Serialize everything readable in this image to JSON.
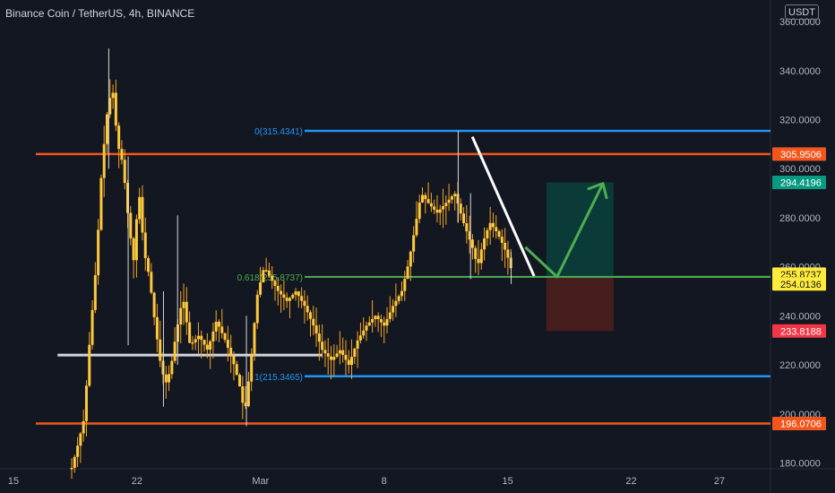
{
  "header": {
    "title": "Binance Coin / TetherUS, 4h, BINANCE",
    "currency": "USDT"
  },
  "chart_data": {
    "type": "candlestick",
    "symbol": "BNBUSDT",
    "interval": "4h",
    "ylim": [
      175,
      365
    ],
    "y_ticks": [
      {
        "value": 180,
        "label": "180.0000"
      },
      {
        "value": 200,
        "label": "200.0000"
      },
      {
        "value": 220,
        "label": "220.0000"
      },
      {
        "value": 240,
        "label": "240.0000"
      },
      {
        "value": 260,
        "label": "260.0000"
      },
      {
        "value": 280,
        "label": "280.0000"
      },
      {
        "value": 300,
        "label": "300.0000"
      },
      {
        "value": 320,
        "label": "320.0000"
      },
      {
        "value": 340,
        "label": "340.0000"
      },
      {
        "value": 360,
        "label": "360.0000"
      }
    ],
    "x_ticks": [
      {
        "day": 15,
        "label": "15"
      },
      {
        "day": 22,
        "label": "22"
      },
      {
        "day": 29,
        "label": "Mar"
      },
      {
        "day": 36,
        "label": "8"
      },
      {
        "day": 43,
        "label": "15"
      },
      {
        "day": 50,
        "label": "22"
      },
      {
        "day": 55,
        "label": "27"
      }
    ],
    "close_path": [
      [
        18.3,
        178
      ],
      [
        18.6,
        186
      ],
      [
        19.0,
        198
      ],
      [
        19.3,
        228
      ],
      [
        19.7,
        262
      ],
      [
        20.0,
        300
      ],
      [
        20.3,
        322
      ],
      [
        20.6,
        334
      ],
      [
        20.9,
        310
      ],
      [
        21.2,
        302
      ],
      [
        21.5,
        280
      ],
      [
        21.8,
        262
      ],
      [
        22.1,
        292
      ],
      [
        22.4,
        266
      ],
      [
        22.7,
        256
      ],
      [
        23.0,
        238
      ],
      [
        23.3,
        222
      ],
      [
        23.6,
        212
      ],
      [
        23.9,
        218
      ],
      [
        24.2,
        232
      ],
      [
        24.6,
        248
      ],
      [
        25.0,
        228
      ],
      [
        25.5,
        232
      ],
      [
        26.0,
        226
      ],
      [
        26.5,
        238
      ],
      [
        27.0,
        230
      ],
      [
        27.5,
        220
      ],
      [
        27.8,
        212
      ],
      [
        28.1,
        200
      ],
      [
        28.4,
        218
      ],
      [
        28.8,
        248
      ],
      [
        29.2,
        260
      ],
      [
        29.6,
        255
      ],
      [
        30.0,
        250
      ],
      [
        30.5,
        246
      ],
      [
        31.0,
        250
      ],
      [
        31.5,
        244
      ],
      [
        32.0,
        236
      ],
      [
        32.5,
        226
      ],
      [
        33.0,
        222
      ],
      [
        33.5,
        226
      ],
      [
        34.0,
        220
      ],
      [
        34.5,
        230
      ],
      [
        35.0,
        236
      ],
      [
        35.5,
        240
      ],
      [
        36.0,
        236
      ],
      [
        36.5,
        244
      ],
      [
        37.0,
        250
      ],
      [
        37.4,
        262
      ],
      [
        37.8,
        278
      ],
      [
        38.1,
        290
      ],
      [
        38.5,
        286
      ],
      [
        39.0,
        282
      ],
      [
        39.5,
        286
      ],
      [
        40.0,
        290
      ],
      [
        40.5,
        278
      ],
      [
        41.0,
        268
      ],
      [
        41.3,
        260
      ],
      [
        41.6,
        270
      ],
      [
        42.0,
        278
      ],
      [
        42.4,
        274
      ],
      [
        42.8,
        268
      ],
      [
        43.1,
        262
      ],
      [
        43.3,
        256
      ]
    ],
    "spikes": [
      {
        "day": 20.4,
        "high": 349,
        "low": 300
      },
      {
        "day": 21.5,
        "high": 305,
        "low": 228
      },
      {
        "day": 23.5,
        "high": 250,
        "low": 203
      },
      {
        "day": 24.3,
        "high": 281,
        "low": 220
      },
      {
        "day": 28.2,
        "high": 240,
        "low": 195
      },
      {
        "day": 40.2,
        "high": 315.4,
        "low": 278
      },
      {
        "day": 40.9,
        "high": 290,
        "low": 255
      },
      {
        "day": 43.2,
        "high": 266,
        "low": 253
      }
    ],
    "horizontal_levels": [
      {
        "name": "resistance",
        "value": 305.9506,
        "label": "305.9506",
        "color": "#f2561c"
      },
      {
        "name": "support",
        "value": 196.0706,
        "label": "196.0706",
        "color": "#f2561c"
      }
    ],
    "fibonacci": [
      {
        "level": "0",
        "value": 315.4341,
        "label": "0(315.4341)",
        "color": "#2196f3"
      },
      {
        "level": "0.618",
        "value": 255.8737,
        "label": "0.618(255.8737)",
        "color": "#4caf50"
      },
      {
        "level": "1",
        "value": 215.3465,
        "label": "1(215.3465)",
        "color": "#2196f3"
      }
    ],
    "neckline": {
      "value": 224,
      "day_start": 17.5,
      "day_end": 32.5,
      "color": "#d1d4dc"
    },
    "trendline": {
      "start": [
        41.0,
        313
      ],
      "end": [
        44.5,
        256.2
      ],
      "color": "#ffffff"
    },
    "position": {
      "day_start": 45.2,
      "day_end": 49.0,
      "target": 294.4196,
      "entry": 255.8737,
      "stop": 233.8188,
      "profit_color": "#0b3d3a",
      "loss_color": "#4a1f1f"
    },
    "projection_arrow": {
      "points": [
        [
          44.0,
          268
        ],
        [
          45.8,
          255.9
        ],
        [
          48.4,
          294
        ]
      ],
      "color": "#4caf50"
    },
    "price_tags": [
      {
        "value": 305.9506,
        "label": "305.9506",
        "bg": "#f2561c",
        "fg": "#ffffff"
      },
      {
        "value": 294.4196,
        "label": "294.4196",
        "bg": "#089981",
        "fg": "#ffffff"
      },
      {
        "value": 257.0,
        "label": "255.8737",
        "bg": "#ffeb3b",
        "fg": "#131722"
      },
      {
        "value": 253.0,
        "label": "254.0136",
        "bg": "#ffeb3b",
        "fg": "#131722"
      },
      {
        "value": 233.8188,
        "label": "233.8188",
        "bg": "#f23645",
        "fg": "#ffffff"
      },
      {
        "value": 196.0706,
        "label": "196.0706",
        "bg": "#f2561c",
        "fg": "#ffffff"
      }
    ],
    "colors": {
      "background": "#131722",
      "candle": "#f5a623",
      "candle_body": "#ffc93c",
      "grid": "#1e222d",
      "axis_text": "#b2b5be"
    }
  }
}
